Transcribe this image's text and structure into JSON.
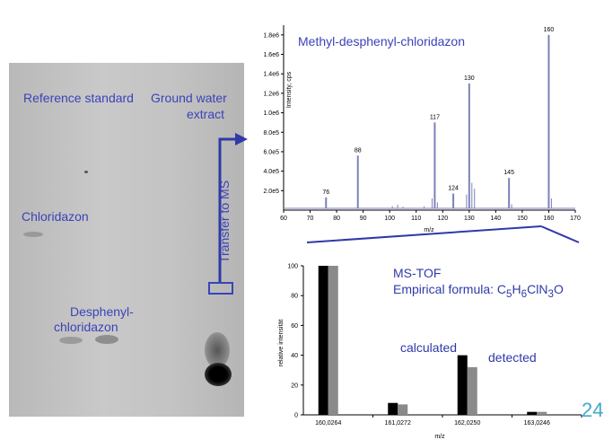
{
  "tlc": {
    "reference_label": "Reference standard",
    "ground_water_label_1": "Ground water",
    "ground_water_label_2": "extract",
    "chloridazon_label": "Chloridazon",
    "desphenyl_label_1": "Desphenyl-",
    "desphenyl_label_2": "chloridazon",
    "transfer_label": "Transfer to MS"
  },
  "page_number": "24",
  "chart_data": [
    {
      "type": "line",
      "title": "Methyl-desphenyl-chloridazon",
      "xlabel": "m/z",
      "ylabel": "Intensity, cps",
      "xlim": [
        60,
        170
      ],
      "ylim": [
        0,
        1900000.0
      ],
      "x_ticks": [
        "60",
        "70",
        "80",
        "90",
        "100",
        "110",
        "120",
        "130",
        "140",
        "150",
        "160",
        "170"
      ],
      "y_ticks": [
        "2.0e5",
        "4.0e5",
        "6.0e5",
        "8.0e5",
        "1.0e6",
        "1.2e6",
        "1.4e6",
        "1.6e6",
        "1.8e6"
      ],
      "y_tick_values": [
        200000,
        400000,
        600000,
        800000,
        1000000,
        1200000,
        1400000,
        1600000,
        1800000
      ],
      "peaks": [
        {
          "x": 76,
          "y": 130000,
          "label": "76"
        },
        {
          "x": 88,
          "y": 560000,
          "label": "88"
        },
        {
          "x": 117,
          "y": 900000,
          "label": "117"
        },
        {
          "x": 124,
          "y": 170000,
          "label": "124"
        },
        {
          "x": 130,
          "y": 1300000,
          "label": "130"
        },
        {
          "x": 145,
          "y": 330000,
          "label": "145"
        },
        {
          "x": 160,
          "y": 1800000,
          "label": "160"
        }
      ],
      "minor_peaks": [
        {
          "x": 101,
          "y": 40000
        },
        {
          "x": 103,
          "y": 55000
        },
        {
          "x": 105,
          "y": 35000
        },
        {
          "x": 113,
          "y": 40000
        },
        {
          "x": 116,
          "y": 120000
        },
        {
          "x": 118,
          "y": 80000
        },
        {
          "x": 129,
          "y": 160000
        },
        {
          "x": 131,
          "y": 280000
        },
        {
          "x": 132,
          "y": 220000
        },
        {
          "x": 146,
          "y": 60000
        },
        {
          "x": 161,
          "y": 120000
        }
      ]
    },
    {
      "type": "bar",
      "xlabel": "m/z",
      "ylabel": "relative intensität",
      "ylim": [
        0,
        100
      ],
      "y_ticks": [
        "0",
        "20",
        "40",
        "60",
        "80",
        "100"
      ],
      "y_tick_values": [
        0,
        20,
        40,
        60,
        80,
        100
      ],
      "categories": [
        "160,0264",
        "161,0272",
        "162,0250",
        "163,0246"
      ],
      "series": [
        {
          "name": "calculated",
          "color": "#000000",
          "values": [
            100,
            8,
            40,
            2
          ]
        },
        {
          "name": "detected",
          "color": "#8a8a8a",
          "values": [
            100,
            7,
            32,
            2
          ]
        }
      ],
      "annotation_1": "MS-TOF",
      "annotation_2_prefix": "Empirical formula: C",
      "formula_sub_1": "5",
      "formula_mid_1": "H",
      "formula_sub_2": "6",
      "formula_mid_2": "ClN",
      "formula_sub_3": "3",
      "formula_end": "O"
    }
  ],
  "colors": {
    "label_blue": "#3a43b8",
    "arrow_blue": "#2f3aa8",
    "spectrum_line": "#7b82b8",
    "page_number": "#3fa9c8"
  }
}
